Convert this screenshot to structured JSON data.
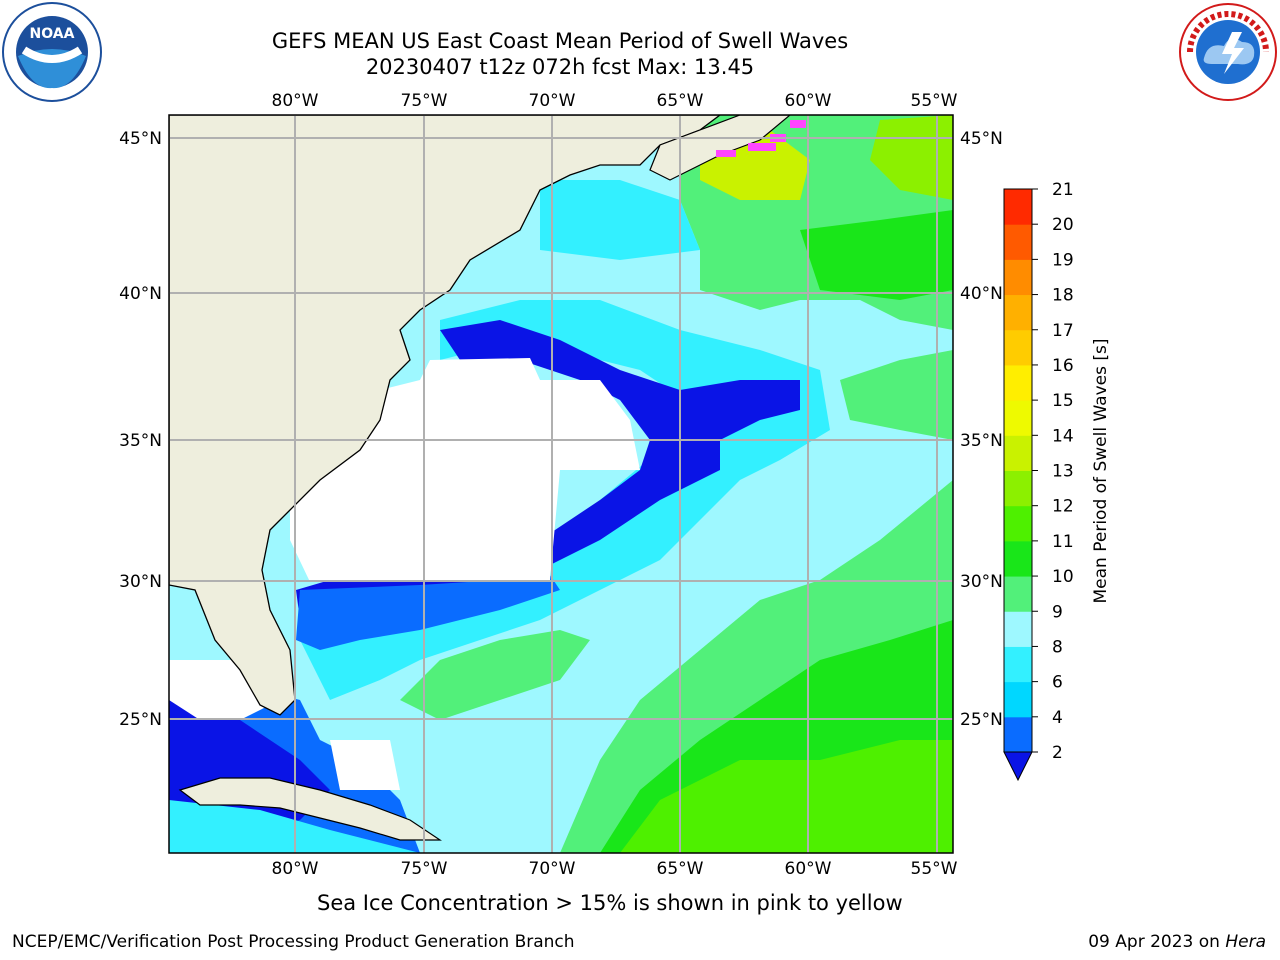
{
  "title_line1": "GEFS MEAN US East Coast Mean Period of Swell Waves",
  "title_line2": "20230407 t12z 072h fcst   Max: 13.45",
  "map": {
    "lon_ticks": [
      "80°W",
      "75°W",
      "70°W",
      "65°W",
      "60°W",
      "55°W"
    ],
    "lat_ticks": [
      "45°N",
      "40°N",
      "35°N",
      "30°N",
      "25°N"
    ],
    "land_color": "#eeeedd",
    "grid_color": "#b0b0b0"
  },
  "colorbar": {
    "label": "Mean Period of Swell Waves [s]",
    "ticks": [
      "2",
      "4",
      "6",
      "8",
      "9",
      "10",
      "11",
      "12",
      "13",
      "14",
      "15",
      "16",
      "17",
      "18",
      "19",
      "20",
      "21"
    ],
    "colors": [
      "#0a6cff",
      "#00d7ff",
      "#33f0ff",
      "#9ef8ff",
      "#52f07a",
      "#19e619",
      "#4ef000",
      "#8cf000",
      "#c9f200",
      "#eefa00",
      "#ffee00",
      "#ffcc00",
      "#ffb000",
      "#ff8c00",
      "#ff5a00",
      "#ff2a00"
    ],
    "under_color": "#0a14e6"
  },
  "note": "Sea Ice Concentration > 15% is shown in pink to yellow",
  "footer": {
    "left": "NCEP/EMC/Verification Post Processing Product Generation Branch",
    "right_date": "09 Apr 2023 on ",
    "right_machine": "Hera"
  },
  "logos": {
    "left": "noaa-logo",
    "right": "nws-logo",
    "left_text": "NOAA",
    "right_text": "NATIONAL WEATHER SERVICE"
  }
}
